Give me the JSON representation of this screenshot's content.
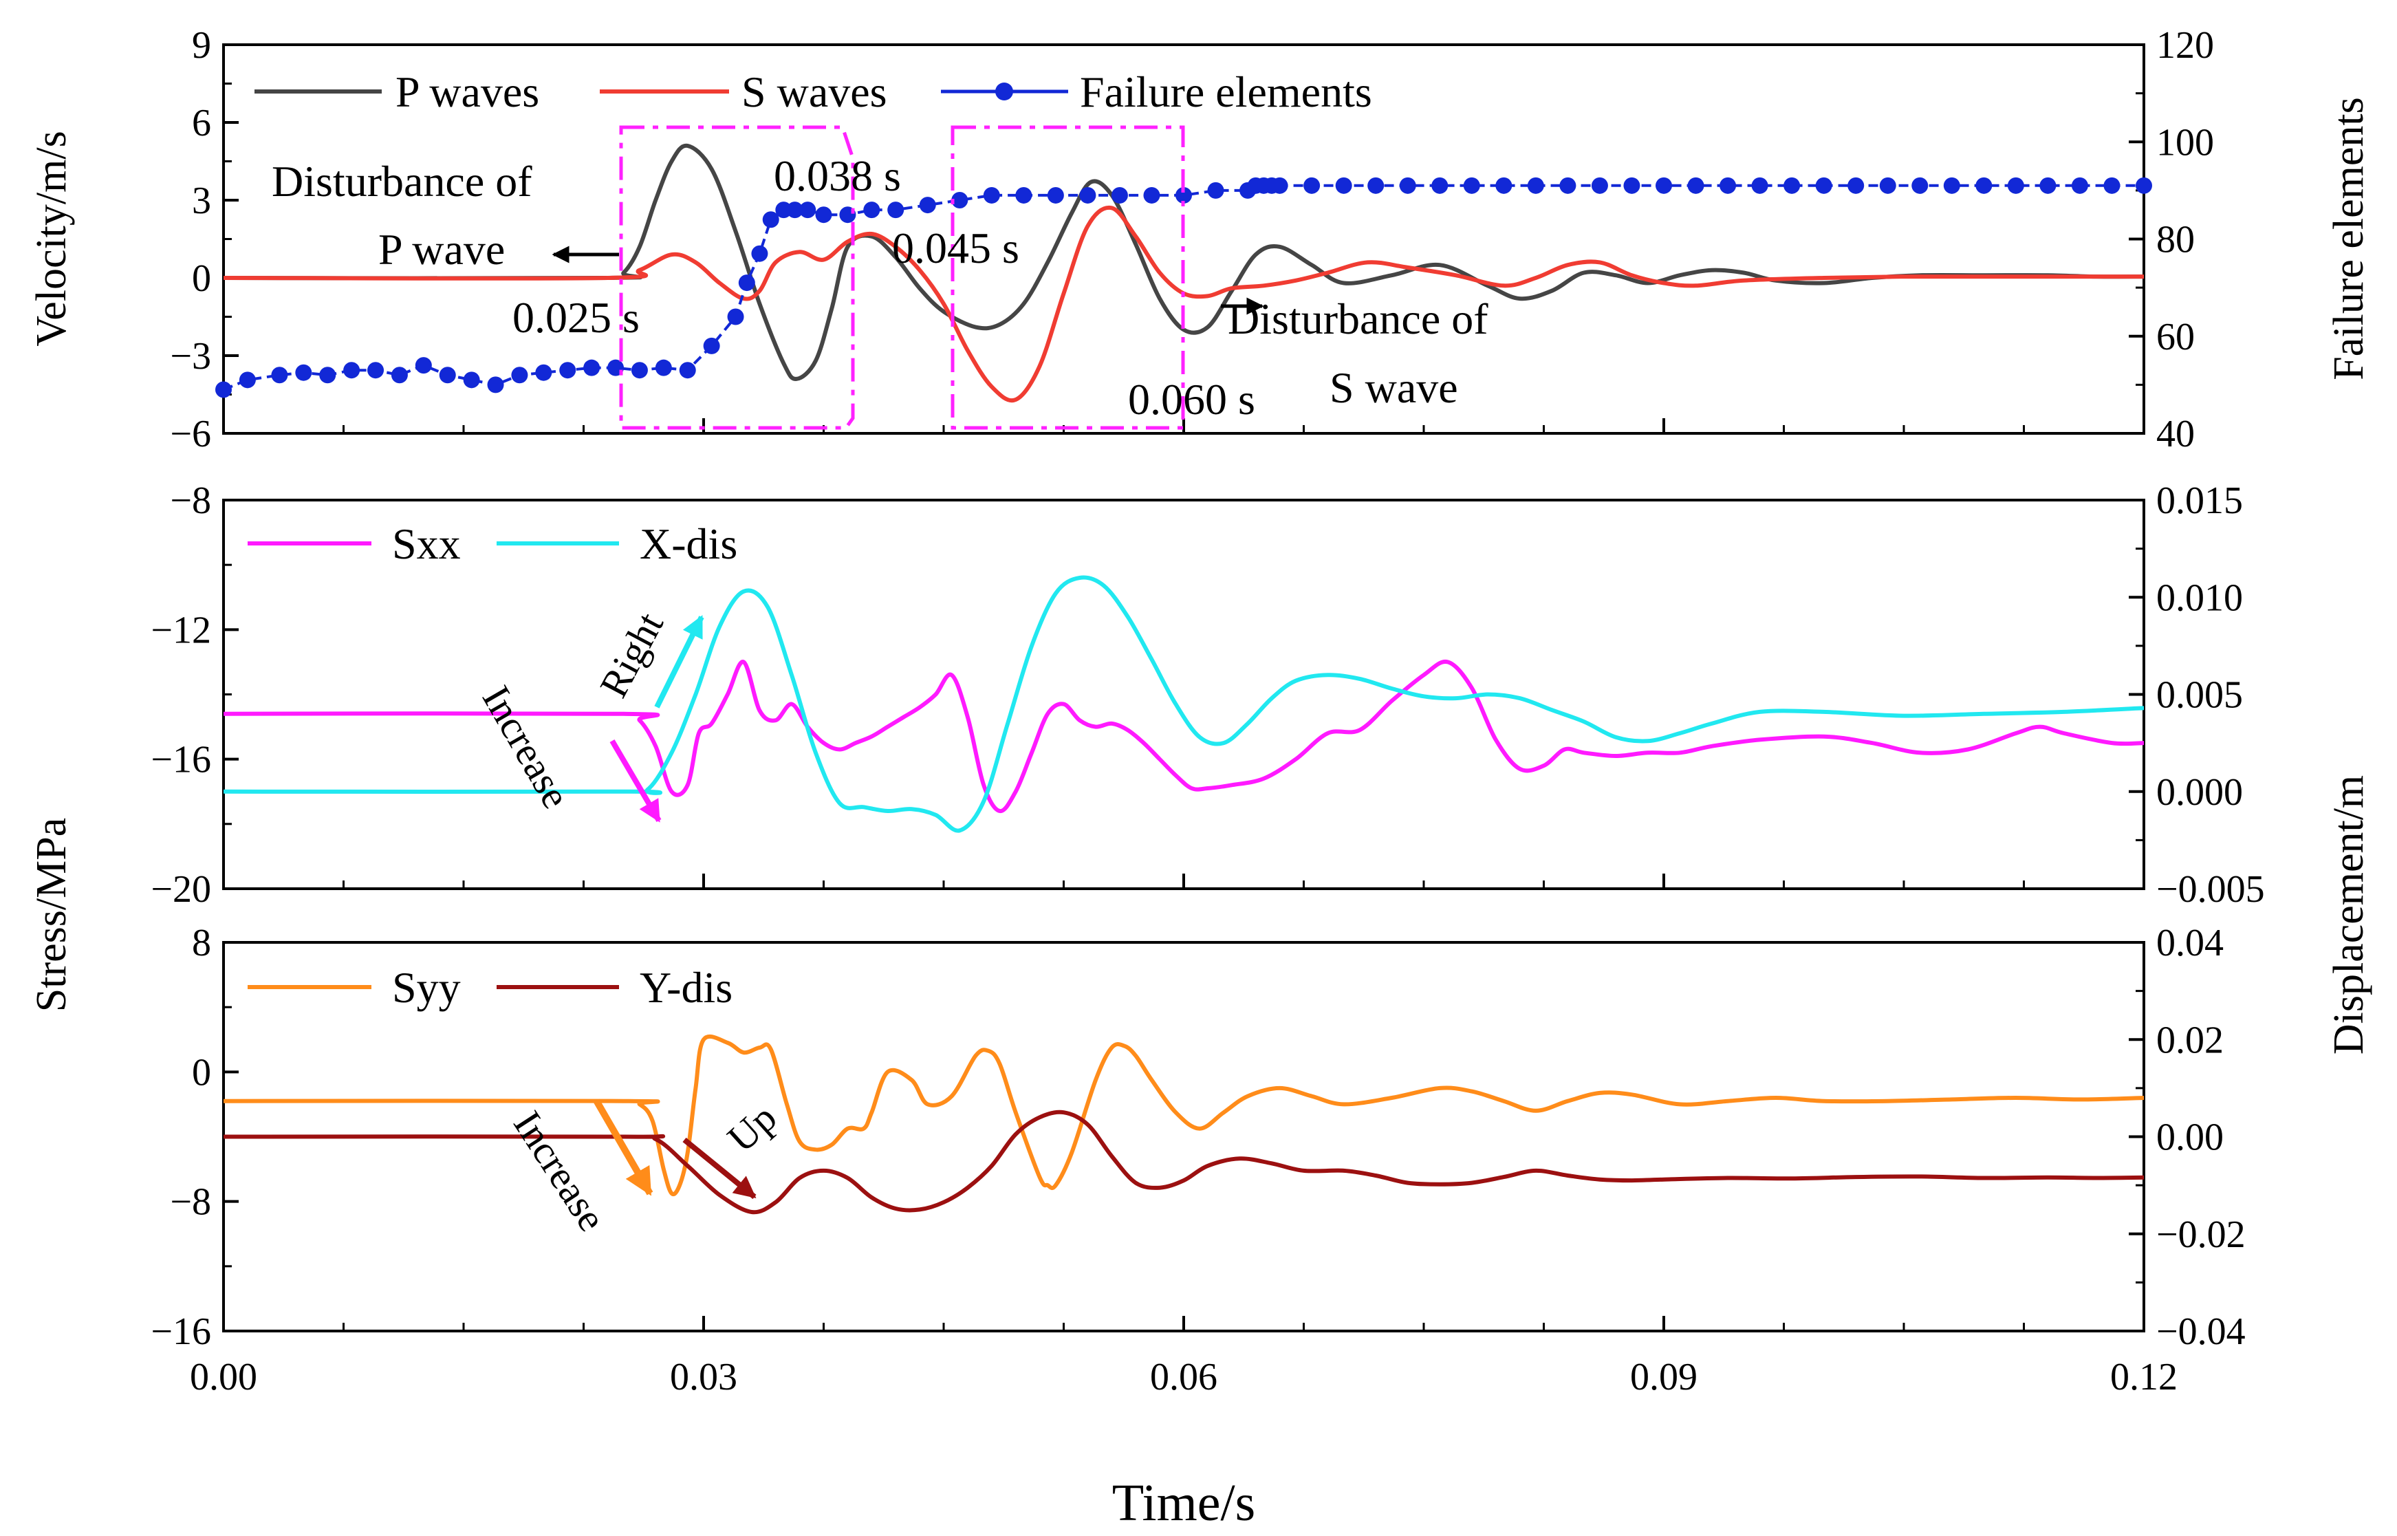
{
  "figure": {
    "x_axis_label": "Time/s",
    "x_ticks": [
      "0.00",
      "0.03",
      "0.06",
      "0.09",
      "0.12"
    ]
  },
  "colors": {
    "p_wave": "#454545",
    "s_wave": "#f03c32",
    "failure": "#1228d6",
    "sxx": "#ff1aff",
    "xdis": "#21e8f0",
    "syy": "#ff8c1a",
    "ydis": "#9c1010",
    "window_box": "#ff22ff"
  },
  "labels": {
    "shared_left_axis": "Stress/MPa",
    "shared_right_axis": "Displacement/m"
  },
  "chart_data": [
    {
      "type": "line",
      "title": "",
      "xlabel": "Time/s",
      "xlim": [
        0,
        0.12
      ],
      "ylabel": "Velocity/m/s",
      "ylim": [
        -6,
        9
      ],
      "yticks": [
        "9",
        "6",
        "3",
        "0",
        "−3",
        "−6"
      ],
      "y2label": "Failure elements",
      "y2lim": [
        40,
        120
      ],
      "y2ticks": [
        "120",
        "100",
        "80",
        "60",
        "40"
      ],
      "series": [
        {
          "name": "P waves",
          "axis": "left",
          "colorKey": "p_wave",
          "x": [
            0,
            0.024,
            0.025,
            0.026,
            0.027,
            0.028,
            0.029,
            0.0305,
            0.032,
            0.0335,
            0.035,
            0.0358,
            0.037,
            0.038,
            0.039,
            0.0405,
            0.042,
            0.0435,
            0.045,
            0.047,
            0.0485,
            0.05,
            0.0515,
            0.053,
            0.0542,
            0.0555,
            0.057,
            0.0585,
            0.06,
            0.0615,
            0.063,
            0.0645,
            0.066,
            0.068,
            0.07,
            0.073,
            0.076,
            0.079,
            0.081,
            0.083,
            0.085,
            0.087,
            0.089,
            0.091,
            0.093,
            0.095,
            0.097,
            0.1,
            0.103,
            0.106,
            0.11,
            0.114,
            0.117,
            0.12
          ],
          "y": [
            0,
            0,
            0.2,
            1.2,
            3,
            4.5,
            5.1,
            4.2,
            1.8,
            -1,
            -3.3,
            -3.9,
            -3.2,
            -1.2,
            1.2,
            1.6,
            0.8,
            -0.4,
            -1.3,
            -1.9,
            -1.8,
            -1.0,
            0.6,
            2.5,
            3.7,
            3.2,
            1.3,
            -0.8,
            -2.0,
            -1.9,
            -0.5,
            0.9,
            1.2,
            0.5,
            -0.2,
            0.1,
            0.5,
            -0.3,
            -0.8,
            -0.5,
            0.2,
            0.1,
            -0.2,
            0.1,
            0.3,
            0.2,
            -0.1,
            -0.2,
            0,
            0.1,
            0.1,
            0.1,
            0.05,
            0.05
          ]
        },
        {
          "name": "S waves",
          "axis": "left",
          "colorKey": "s_wave",
          "x": [
            0,
            0.024,
            0.026,
            0.028,
            0.0295,
            0.031,
            0.0325,
            0.0335,
            0.0345,
            0.036,
            0.0375,
            0.039,
            0.0405,
            0.042,
            0.0435,
            0.045,
            0.0465,
            0.048,
            0.0495,
            0.051,
            0.0525,
            0.054,
            0.0555,
            0.057,
            0.0585,
            0.06,
            0.0615,
            0.063,
            0.065,
            0.067,
            0.069,
            0.0715,
            0.074,
            0.077,
            0.08,
            0.082,
            0.084,
            0.086,
            0.088,
            0.09,
            0.092,
            0.095,
            0.1,
            0.105,
            0.11,
            0.115,
            0.12
          ],
          "y": [
            0,
            0,
            0.3,
            0.9,
            0.6,
            -0.2,
            -0.8,
            -0.5,
            0.6,
            1.0,
            0.7,
            1.4,
            1.7,
            1.2,
            0.3,
            -1.0,
            -2.8,
            -4.2,
            -4.7,
            -3.4,
            -0.6,
            2.0,
            2.7,
            1.6,
            0.2,
            -0.6,
            -0.7,
            -0.4,
            -0.3,
            -0.1,
            0.2,
            0.6,
            0.4,
            0.1,
            -0.3,
            0,
            0.5,
            0.6,
            0.1,
            -0.2,
            -0.3,
            -0.1,
            0,
            0.05,
            0.05,
            0.05,
            0.05
          ]
        },
        {
          "name": "Failure elements",
          "axis": "right",
          "colorKey": "failure",
          "markers": true,
          "x": [
            0,
            0.0015,
            0.0035,
            0.005,
            0.0065,
            0.008,
            0.0095,
            0.011,
            0.0125,
            0.014,
            0.0155,
            0.017,
            0.0185,
            0.02,
            0.0215,
            0.023,
            0.0245,
            0.026,
            0.0275,
            0.029,
            0.0305,
            0.032,
            0.0327,
            0.0335,
            0.0342,
            0.035,
            0.0357,
            0.0365,
            0.0375,
            0.039,
            0.0405,
            0.042,
            0.044,
            0.046,
            0.048,
            0.05,
            0.052,
            0.054,
            0.056,
            0.058,
            0.06,
            0.062,
            0.064,
            0.0645,
            0.065,
            0.0655,
            0.066,
            0.068,
            0.07,
            0.072,
            0.074,
            0.076,
            0.078,
            0.08,
            0.082,
            0.084,
            0.086,
            0.088,
            0.09,
            0.092,
            0.094,
            0.096,
            0.098,
            0.1,
            0.102,
            0.104,
            0.106,
            0.108,
            0.11,
            0.112,
            0.114,
            0.116,
            0.118,
            0.12
          ],
          "y": [
            49,
            51,
            52,
            52.5,
            52,
            53,
            53,
            52,
            54,
            52,
            51,
            50,
            52,
            52.5,
            53,
            53.5,
            53.5,
            53,
            53.5,
            53,
            58,
            64,
            71,
            77,
            84,
            86,
            86,
            86,
            85,
            85,
            86,
            86,
            87,
            88,
            89,
            89,
            89,
            89,
            89,
            89,
            89,
            90,
            90,
            91,
            91,
            91,
            91,
            91,
            91,
            91,
            91,
            91,
            91,
            91,
            91,
            91,
            91,
            91,
            91,
            91,
            91,
            91,
            91,
            91,
            91,
            91,
            91,
            91,
            91,
            91,
            91,
            91,
            91,
            91
          ]
        }
      ],
      "annotations": {
        "disturbance_p_line1": "Disturbance of",
        "disturbance_p_line2": "P wave",
        "t_0025": "0.025 s",
        "t_0038": "0.038 s",
        "t_0045": "0.045 s",
        "t_0060": "0.060 s",
        "disturbance_s_line1": "Disturbance of",
        "disturbance_s_line2": "S wave"
      }
    },
    {
      "type": "line",
      "title": "",
      "xlabel": "Time/s",
      "xlim": [
        0,
        0.12
      ],
      "ylabel": "Stress/MPa",
      "ylim": [
        -20,
        -8
      ],
      "yticks": [
        "−8",
        "−12",
        "−16",
        "−20"
      ],
      "y2label": "Displacement/m",
      "y2lim": [
        -0.005,
        0.015
      ],
      "y2ticks": [
        "0.015",
        "0.010",
        "0.005",
        "0.000",
        "−0.005"
      ],
      "series": [
        {
          "name": "Sxx",
          "axis": "left",
          "colorKey": "sxx",
          "x": [
            0,
            0.025,
            0.026,
            0.027,
            0.028,
            0.029,
            0.0297,
            0.0305,
            0.0315,
            0.0325,
            0.0335,
            0.0345,
            0.0355,
            0.0365,
            0.0375,
            0.0385,
            0.0395,
            0.0405,
            0.0415,
            0.0425,
            0.0435,
            0.0445,
            0.0455,
            0.0465,
            0.0475,
            0.0485,
            0.0495,
            0.0505,
            0.0515,
            0.0525,
            0.0535,
            0.0545,
            0.0555,
            0.0565,
            0.0575,
            0.0585,
            0.0595,
            0.0605,
            0.0615,
            0.063,
            0.065,
            0.067,
            0.069,
            0.071,
            0.073,
            0.075,
            0.0765,
            0.078,
            0.0795,
            0.081,
            0.0825,
            0.0838,
            0.085,
            0.087,
            0.089,
            0.091,
            0.093,
            0.096,
            0.1,
            0.103,
            0.106,
            0.109,
            0.112,
            0.1135,
            0.115,
            0.118,
            0.12
          ],
          "y": [
            -14.6,
            -14.6,
            -14.8,
            -15.6,
            -17.0,
            -16.8,
            -15.2,
            -14.9,
            -14.0,
            -13.0,
            -14.5,
            -14.8,
            -14.3,
            -15.0,
            -15.5,
            -15.7,
            -15.5,
            -15.3,
            -15.0,
            -14.7,
            -14.4,
            -14.0,
            -13.4,
            -14.7,
            -16.8,
            -17.6,
            -17.0,
            -15.8,
            -14.6,
            -14.3,
            -14.8,
            -15.0,
            -14.9,
            -15.1,
            -15.5,
            -16.0,
            -16.5,
            -16.9,
            -16.9,
            -16.8,
            -16.6,
            -16.0,
            -15.2,
            -15.1,
            -14.2,
            -13.4,
            -13.0,
            -13.8,
            -15.4,
            -16.3,
            -16.2,
            -15.7,
            -15.8,
            -15.9,
            -15.8,
            -15.8,
            -15.6,
            -15.4,
            -15.3,
            -15.5,
            -15.8,
            -15.7,
            -15.2,
            -15.0,
            -15.2,
            -15.5,
            -15.5
          ]
        },
        {
          "name": "X-dis",
          "axis": "right",
          "colorKey": "xdis",
          "x": [
            0,
            0.025,
            0.0265,
            0.028,
            0.0295,
            0.031,
            0.0325,
            0.034,
            0.0355,
            0.037,
            0.0385,
            0.04,
            0.0415,
            0.043,
            0.0445,
            0.046,
            0.0475,
            0.049,
            0.0505,
            0.052,
            0.0535,
            0.055,
            0.0565,
            0.058,
            0.0595,
            0.061,
            0.0625,
            0.064,
            0.0655,
            0.067,
            0.069,
            0.071,
            0.073,
            0.075,
            0.077,
            0.079,
            0.081,
            0.083,
            0.085,
            0.087,
            0.089,
            0.091,
            0.093,
            0.096,
            0.1,
            0.105,
            0.11,
            0.115,
            0.12
          ],
          "y": [
            0,
            0,
            0.0001,
            0.002,
            0.005,
            0.0085,
            0.0103,
            0.0095,
            0.006,
            0.002,
            -0.0006,
            -0.0008,
            -0.001,
            -0.0009,
            -0.0012,
            -0.002,
            -0.0005,
            0.0035,
            0.0075,
            0.0102,
            0.011,
            0.0106,
            0.009,
            0.0068,
            0.0045,
            0.0028,
            0.0025,
            0.0035,
            0.0048,
            0.0057,
            0.006,
            0.0058,
            0.0053,
            0.0049,
            0.0048,
            0.005,
            0.0048,
            0.0042,
            0.0036,
            0.0028,
            0.0026,
            0.003,
            0.0035,
            0.0041,
            0.0041,
            0.0039,
            0.004,
            0.0041,
            0.0043
          ]
        }
      ]
    },
    {
      "type": "line",
      "title": "",
      "xlabel": "Time/s",
      "xlim": [
        0,
        0.12
      ],
      "ylabel": "Stress/MPa",
      "ylim": [
        -16,
        8
      ],
      "yticks": [
        "8",
        "0",
        "−8",
        "−16"
      ],
      "y2label": "Displacement/m",
      "y2lim": [
        -0.04,
        0.04
      ],
      "y2ticks": [
        "0.04",
        "0.02",
        "0.00",
        "−0.02",
        "−0.04"
      ],
      "series": [
        {
          "name": "Syy",
          "axis": "left",
          "colorKey": "syy",
          "x": [
            0,
            0.025,
            0.026,
            0.0268,
            0.0275,
            0.028,
            0.0285,
            0.029,
            0.0295,
            0.03,
            0.0315,
            0.0325,
            0.0335,
            0.0342,
            0.0352,
            0.036,
            0.037,
            0.038,
            0.039,
            0.04,
            0.0405,
            0.0415,
            0.043,
            0.044,
            0.0455,
            0.047,
            0.0478,
            0.0485,
            0.0495,
            0.051,
            0.0515,
            0.052,
            0.053,
            0.0545,
            0.0555,
            0.0563,
            0.057,
            0.058,
            0.0595,
            0.061,
            0.0625,
            0.064,
            0.066,
            0.068,
            0.07,
            0.073,
            0.076,
            0.078,
            0.08,
            0.082,
            0.084,
            0.086,
            0.088,
            0.091,
            0.094,
            0.097,
            0.1,
            0.104,
            0.108,
            0.112,
            0.116,
            0.12
          ],
          "y": [
            -1.8,
            -1.8,
            -2.0,
            -3.0,
            -6.0,
            -7.5,
            -7.0,
            -5.0,
            -1.0,
            2.0,
            1.8,
            1.2,
            1.5,
            1.4,
            -2.0,
            -4.3,
            -4.8,
            -4.5,
            -3.5,
            -3.5,
            -2.5,
            0,
            -0.5,
            -2.0,
            -1.5,
            1.0,
            1.3,
            0.5,
            -2.5,
            -6.5,
            -7.0,
            -7.0,
            -5.0,
            -0.5,
            1.5,
            1.6,
            1.0,
            -0.5,
            -2.5,
            -3.5,
            -2.5,
            -1.5,
            -1.0,
            -1.5,
            -2.0,
            -1.6,
            -1.0,
            -1.2,
            -1.8,
            -2.4,
            -1.8,
            -1.3,
            -1.4,
            -2.0,
            -1.8,
            -1.6,
            -1.8,
            -1.8,
            -1.7,
            -1.6,
            -1.7,
            -1.6
          ]
        },
        {
          "name": "Y-dis",
          "axis": "right",
          "colorKey": "ydis",
          "x": [
            0,
            0.025,
            0.027,
            0.029,
            0.031,
            0.033,
            0.0345,
            0.036,
            0.0375,
            0.039,
            0.0405,
            0.042,
            0.0435,
            0.045,
            0.0465,
            0.048,
            0.0495,
            0.051,
            0.0525,
            0.054,
            0.0555,
            0.057,
            0.0585,
            0.06,
            0.0615,
            0.0635,
            0.0655,
            0.0675,
            0.07,
            0.072,
            0.074,
            0.076,
            0.078,
            0.08,
            0.082,
            0.084,
            0.086,
            0.088,
            0.09,
            0.094,
            0.098,
            0.102,
            0.106,
            0.11,
            0.114,
            0.117,
            0.12
          ],
          "y": [
            0,
            0,
            -0.0005,
            -0.006,
            -0.012,
            -0.0155,
            -0.0135,
            -0.0085,
            -0.007,
            -0.0085,
            -0.0125,
            -0.0148,
            -0.015,
            -0.0135,
            -0.0105,
            -0.006,
            0.0005,
            0.004,
            0.005,
            0.0025,
            -0.004,
            -0.0095,
            -0.0105,
            -0.009,
            -0.006,
            -0.0045,
            -0.0055,
            -0.007,
            -0.007,
            -0.008,
            -0.0095,
            -0.0098,
            -0.0095,
            -0.0083,
            -0.007,
            -0.008,
            -0.0088,
            -0.009,
            -0.0088,
            -0.0085,
            -0.0086,
            -0.0083,
            -0.0082,
            -0.0085,
            -0.0084,
            -0.0085,
            -0.0084
          ]
        }
      ],
      "annotations": {
        "up": "Up"
      }
    }
  ],
  "panel2_annotations": {
    "right": "Right",
    "increase": "Increase"
  },
  "panel3_annotations": {
    "increase": "Increase"
  }
}
